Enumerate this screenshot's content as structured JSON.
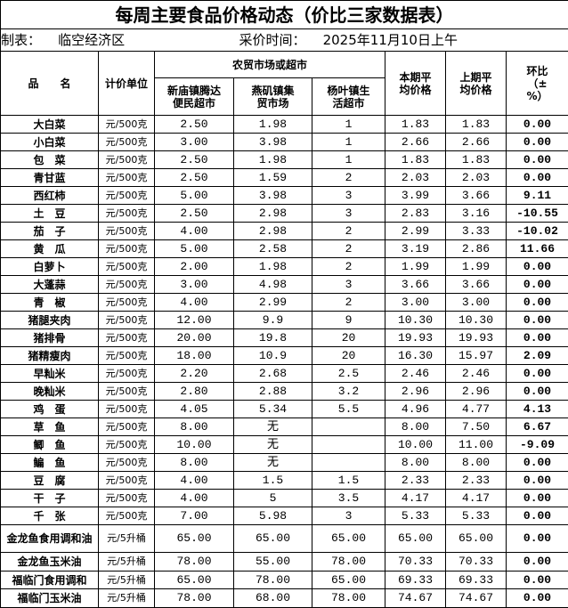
{
  "header": {
    "title": "每周主要食品价格动态（价比三家数据表）"
  },
  "info": {
    "maker_label": "制表：",
    "maker": "临空经济区",
    "time_label": "采价时间：",
    "time": "2025年11月10日上午"
  },
  "table": {
    "headers": {
      "name": "品　　名",
      "unit": "计价单位",
      "markets": "农贸市场或超市",
      "current": "本期平均价格",
      "previous": "上期平均价格",
      "ratio": "环比（±%）",
      "market_names": [
        "新庙镇腾达便民超市",
        "燕矶镇集贸市场",
        "杨叶镇生活超市"
      ]
    },
    "rows": [
      [
        "大白菜",
        "元/500克",
        "2.50",
        "1.98",
        "1",
        "1.83",
        "1.83",
        "0.00"
      ],
      [
        "小白菜",
        "元/500克",
        "3.00",
        "3.98",
        "1",
        "2.66",
        "2.66",
        "0.00"
      ],
      [
        "包　菜",
        "元/500克",
        "2.50",
        "1.98",
        "1",
        "1.83",
        "1.83",
        "0.00"
      ],
      [
        "青甘蓝",
        "元/500克",
        "2.50",
        "1.59",
        "2",
        "2.03",
        "2.03",
        "0.00"
      ],
      [
        "西红柿",
        "元/500克",
        "5.00",
        "3.98",
        "3",
        "3.99",
        "3.66",
        "9.11"
      ],
      [
        "土　豆",
        "元/500克",
        "2.50",
        "2.98",
        "3",
        "2.83",
        "3.16",
        "-10.55"
      ],
      [
        "茄　子",
        "元/500克",
        "4.00",
        "2.98",
        "2",
        "2.99",
        "3.33",
        "-10.02"
      ],
      [
        "黄　瓜",
        "元/500克",
        "5.00",
        "2.58",
        "2",
        "3.19",
        "2.86",
        "11.66"
      ],
      [
        "白萝卜",
        "元/500克",
        "2.00",
        "1.98",
        "2",
        "1.99",
        "1.99",
        "0.00"
      ],
      [
        "大蓬蒜",
        "元/500克",
        "3.00",
        "4.98",
        "3",
        "3.66",
        "3.66",
        "0.00"
      ],
      [
        "青　椒",
        "元/500克",
        "4.00",
        "2.99",
        "2",
        "3.00",
        "3.00",
        "0.00"
      ],
      [
        "猪腿夹肉",
        "元/500克",
        "12.00",
        "9.9",
        "9",
        "10.30",
        "10.30",
        "0.00"
      ],
      [
        "猪排骨",
        "元/500克",
        "20.00",
        "19.8",
        "20",
        "19.93",
        "19.93",
        "0.00"
      ],
      [
        "猪精瘦肉",
        "元/500克",
        "18.00",
        "10.9",
        "20",
        "16.30",
        "15.97",
        "2.09"
      ],
      [
        "早籼米",
        "元/500克",
        "2.20",
        "2.68",
        "2.5",
        "2.46",
        "2.46",
        "0.00"
      ],
      [
        "晚籼米",
        "元/500克",
        "2.80",
        "2.88",
        "3.2",
        "2.96",
        "2.96",
        "0.00"
      ],
      [
        "鸡　蛋",
        "元/500克",
        "4.05",
        "5.34",
        "5.5",
        "4.96",
        "4.77",
        "4.13"
      ],
      [
        "草　鱼",
        "元/500克",
        "8.00",
        "无",
        null,
        "8.00",
        "7.50",
        "6.67"
      ],
      [
        "鲫　鱼",
        "元/500克",
        "10.00",
        "无",
        null,
        "10.00",
        "11.00",
        "-9.09"
      ],
      [
        "鳊　鱼",
        "元/500克",
        "8.00",
        "无",
        null,
        "8.00",
        "8.00",
        "0.00"
      ],
      [
        "豆　腐",
        "元/500克",
        "4.00",
        "1.5",
        "1.5",
        "2.33",
        "2.33",
        "0.00"
      ],
      [
        "干　子",
        "元/500克",
        "4.00",
        "5",
        "3.5",
        "4.17",
        "4.17",
        "0.00"
      ],
      [
        "千　张",
        "元/500克",
        "7.00",
        "5.98",
        "3",
        "5.33",
        "5.33",
        "0.00"
      ],
      [
        "金龙鱼食用调和油",
        "元/5升桶",
        "65.00",
        "65.00",
        "65.00",
        "65.00",
        "65.00",
        "0.00"
      ],
      [
        "金龙鱼玉米油",
        "元/5升桶",
        "78.00",
        "55.00",
        "78.00",
        "70.33",
        "70.33",
        "0.00"
      ],
      [
        "福临门食用调和",
        "元/5升桶",
        "65.00",
        "78.00",
        "65.00",
        "69.33",
        "69.33",
        "0.00"
      ],
      [
        "福临门玉米油",
        "元/5升桶",
        "78.00",
        "68.00",
        "78.00",
        "74.67",
        "74.67",
        "0.00"
      ]
    ]
  }
}
